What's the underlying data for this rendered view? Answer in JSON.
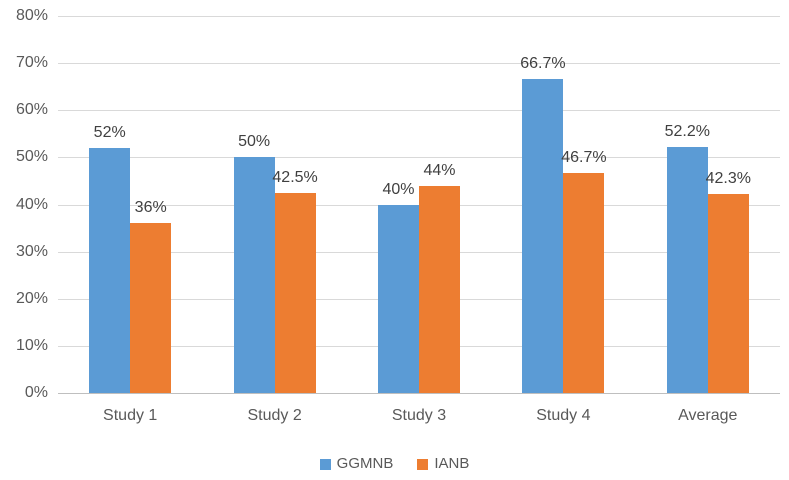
{
  "chart_data": {
    "type": "bar",
    "categories": [
      "Study 1",
      "Study 2",
      "Study 3",
      "Study 4",
      "Average"
    ],
    "series": [
      {
        "name": "GGMNB",
        "color": "#5B9BD5",
        "values": [
          52,
          50,
          40,
          66.7,
          52.2
        ],
        "data_labels": [
          "52%",
          "50%",
          "40%",
          "66.7%",
          "52.2%"
        ]
      },
      {
        "name": "IANB",
        "color": "#ED7D31",
        "values": [
          36,
          42.5,
          44,
          46.7,
          42.3
        ],
        "data_labels": [
          "36%",
          "42.5%",
          "44%",
          "46.7%",
          "42.3%"
        ]
      }
    ],
    "y_axis": {
      "min": 0,
      "max": 80,
      "step": 10,
      "tick_labels": [
        "0%",
        "10%",
        "20%",
        "30%",
        "40%",
        "50%",
        "60%",
        "70%",
        "80%"
      ]
    },
    "grid": true,
    "legend_position": "bottom",
    "title": "",
    "xlabel": "",
    "ylabel": ""
  },
  "style": {
    "series_colors": [
      "#5B9BD5",
      "#ED7D31"
    ],
    "grid_color": "#D9D9D9",
    "axis_line_color": "#BFBFBF",
    "tick_label_color": "#595959",
    "data_label_color": "#404040",
    "background": "#FFFFFF"
  }
}
